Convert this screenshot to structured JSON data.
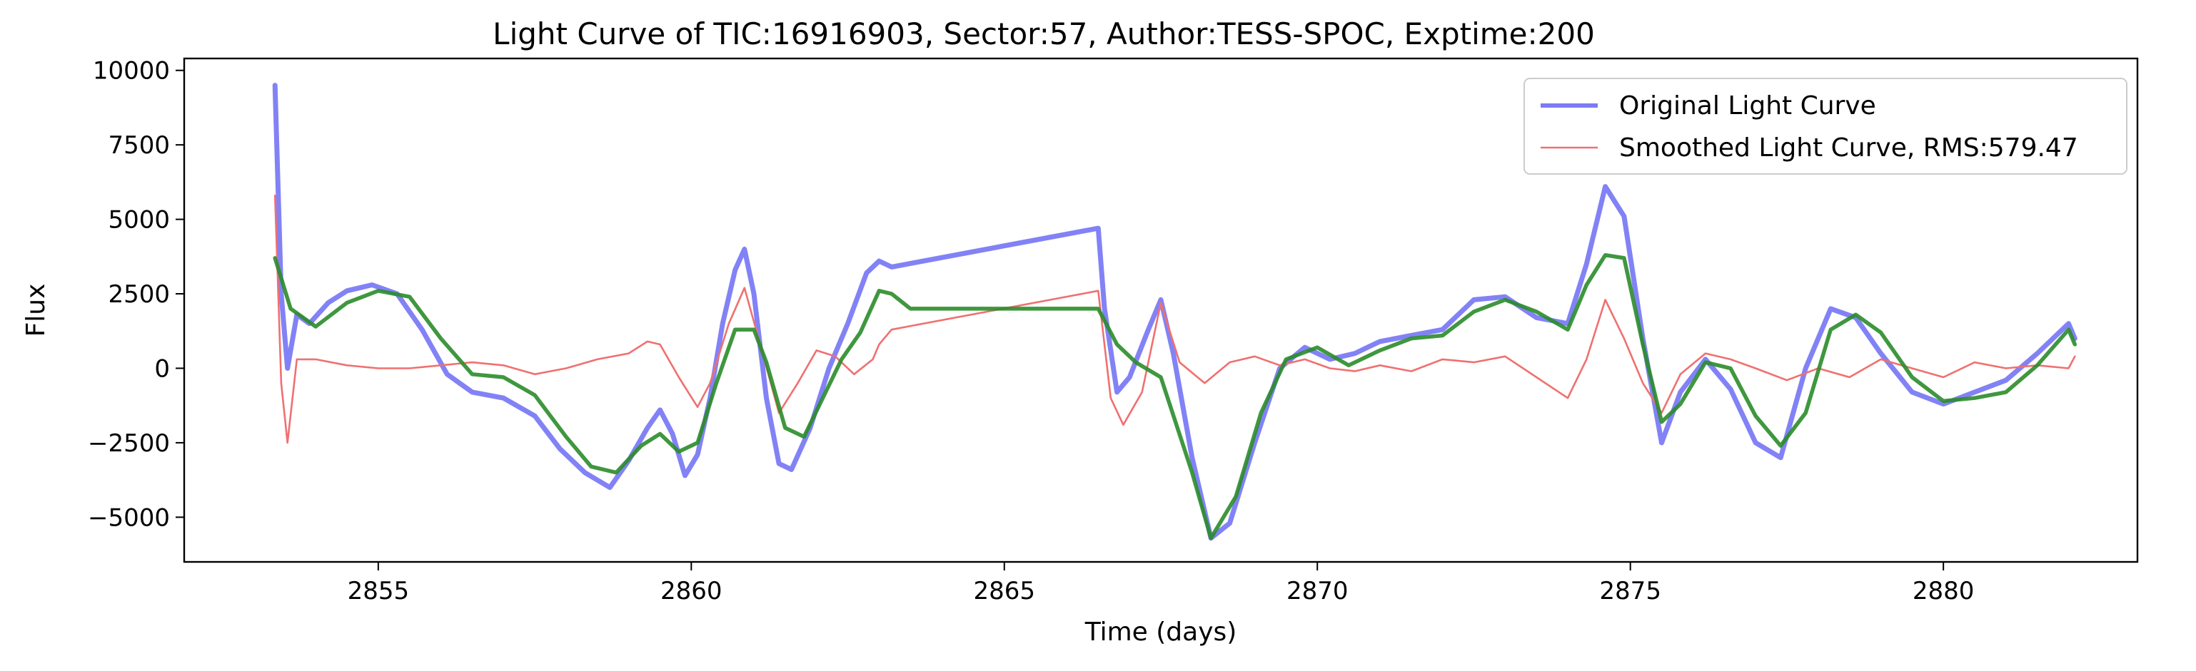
{
  "chart_data": {
    "type": "line",
    "title": "Light Curve of TIC:16916903, Sector:57, Author:TESS-SPOC, Exptime:200",
    "xlabel": "Time (days)",
    "ylabel": "Flux",
    "xlim": [
      2851.9,
      2883.1
    ],
    "ylim": [
      -6500,
      10400
    ],
    "xticks": [
      2855,
      2860,
      2865,
      2870,
      2875,
      2880
    ],
    "xtick_labels": [
      "2855",
      "2860",
      "2865",
      "2870",
      "2875",
      "2880"
    ],
    "yticks": [
      -5000,
      -2500,
      0,
      2500,
      5000,
      7500,
      10000
    ],
    "ytick_labels": [
      "−5000",
      "−2500",
      "0",
      "2500",
      "5000",
      "7500",
      "10000"
    ],
    "grid": false,
    "legend_position": "top-right",
    "series": [
      {
        "name": "Original Light Curve",
        "color": "#7b7bf6",
        "x": [
          2853.35,
          2853.45,
          2853.55,
          2853.7,
          2853.9,
          2854.2,
          2854.5,
          2854.9,
          2855.3,
          2855.7,
          2856.1,
          2856.5,
          2857.0,
          2857.5,
          2857.9,
          2858.3,
          2858.7,
          2859.0,
          2859.3,
          2859.5,
          2859.7,
          2859.9,
          2860.1,
          2860.3,
          2860.5,
          2860.7,
          2860.85,
          2861.0,
          2861.2,
          2861.4,
          2861.6,
          2861.9,
          2862.2,
          2862.5,
          2862.8,
          2863.0,
          2863.2,
          2866.5,
          2866.6,
          2866.8,
          2867.0,
          2867.3,
          2867.5,
          2867.7,
          2868.0,
          2868.3,
          2868.6,
          2869.0,
          2869.4,
          2869.8,
          2870.2,
          2870.6,
          2871.0,
          2871.5,
          2872.0,
          2872.5,
          2873.0,
          2873.5,
          2874.0,
          2874.3,
          2874.6,
          2874.9,
          2875.2,
          2875.5,
          2875.8,
          2876.2,
          2876.6,
          2877.0,
          2877.4,
          2877.8,
          2878.2,
          2878.6,
          2879.0,
          2879.5,
          2880.0,
          2880.5,
          2881.0,
          2881.5,
          2882.0,
          2882.1
        ],
        "y": [
          9500,
          2500,
          0,
          1800,
          1500,
          2200,
          2600,
          2800,
          2500,
          1300,
          -200,
          -800,
          -1000,
          -1600,
          -2700,
          -3500,
          -4000,
          -3100,
          -2000,
          -1400,
          -2200,
          -3600,
          -2900,
          -1000,
          1500,
          3300,
          4000,
          2500,
          -1000,
          -3200,
          -3400,
          -2000,
          0,
          1500,
          3200,
          3600,
          3400,
          4700,
          2000,
          -800,
          -300,
          1300,
          2300,
          500,
          -3000,
          -5700,
          -5200,
          -2500,
          0,
          700,
          300,
          500,
          900,
          1100,
          1300,
          2300,
          2400,
          1700,
          1500,
          3500,
          6100,
          5100,
          1000,
          -2500,
          -800,
          300,
          -700,
          -2500,
          -3000,
          0,
          2000,
          1700,
          500,
          -800,
          -1200,
          -800,
          -400,
          500,
          1500,
          1000
        ]
      },
      {
        "name": "Smoothed Light Curve, RMS:579.47",
        "color": "#f07070",
        "x": [
          2853.35,
          2853.45,
          2853.55,
          2853.7,
          2854.0,
          2854.5,
          2855.0,
          2855.5,
          2856.0,
          2856.5,
          2857.0,
          2857.5,
          2858.0,
          2858.5,
          2859.0,
          2859.3,
          2859.5,
          2859.8,
          2860.1,
          2860.3,
          2860.6,
          2860.85,
          2861.1,
          2861.4,
          2861.7,
          2862.0,
          2862.3,
          2862.6,
          2862.9,
          2863.0,
          2863.2,
          2866.5,
          2866.7,
          2866.9,
          2867.2,
          2867.5,
          2867.8,
          2868.2,
          2868.6,
          2869.0,
          2869.4,
          2869.8,
          2870.2,
          2870.6,
          2871.0,
          2871.5,
          2872.0,
          2872.5,
          2873.0,
          2873.5,
          2874.0,
          2874.3,
          2874.6,
          2874.9,
          2875.2,
          2875.5,
          2875.8,
          2876.2,
          2876.6,
          2877.0,
          2877.5,
          2878.0,
          2878.5,
          2879.0,
          2879.5,
          2880.0,
          2880.5,
          2881.0,
          2881.5,
          2882.0,
          2882.1
        ],
        "y": [
          5800,
          -500,
          -2500,
          300,
          300,
          100,
          0,
          0,
          100,
          200,
          100,
          -200,
          0,
          300,
          500,
          900,
          800,
          -300,
          -1300,
          -500,
          1500,
          2700,
          800,
          -1500,
          -500,
          600,
          400,
          -200,
          300,
          800,
          1300,
          2600,
          -1000,
          -1900,
          -800,
          2200,
          200,
          -500,
          200,
          400,
          100,
          300,
          0,
          -100,
          100,
          -100,
          300,
          200,
          400,
          -300,
          -1000,
          300,
          2300,
          1000,
          -500,
          -1500,
          -200,
          500,
          300,
          0,
          -400,
          0,
          -300,
          300,
          0,
          -300,
          200,
          0,
          100,
          0,
          400
        ]
      },
      {
        "name": "",
        "color": "#2a8c2a",
        "x": [
          2853.35,
          2853.6,
          2854.0,
          2854.5,
          2855.0,
          2855.5,
          2856.0,
          2856.5,
          2857.0,
          2857.5,
          2858.0,
          2858.4,
          2858.8,
          2859.2,
          2859.5,
          2859.8,
          2860.1,
          2860.4,
          2860.7,
          2861.0,
          2861.2,
          2861.5,
          2861.8,
          2862.1,
          2862.4,
          2862.7,
          2863.0,
          2863.2,
          2863.5,
          2866.5,
          2866.8,
          2867.1,
          2867.5,
          2868.0,
          2868.3,
          2868.7,
          2869.1,
          2869.5,
          2870.0,
          2870.5,
          2871.0,
          2871.5,
          2872.0,
          2872.5,
          2873.0,
          2873.5,
          2874.0,
          2874.3,
          2874.6,
          2874.9,
          2875.2,
          2875.5,
          2875.8,
          2876.2,
          2876.6,
          2877.0,
          2877.4,
          2877.8,
          2878.2,
          2878.6,
          2879.0,
          2879.5,
          2880.0,
          2880.5,
          2881.0,
          2881.5,
          2882.0,
          2882.1
        ],
        "y": [
          3700,
          2000,
          1400,
          2200,
          2600,
          2400,
          1000,
          -200,
          -300,
          -900,
          -2300,
          -3300,
          -3500,
          -2600,
          -2200,
          -2800,
          -2500,
          -500,
          1300,
          1300,
          200,
          -2000,
          -2300,
          -1000,
          300,
          1200,
          2600,
          2500,
          2000,
          2000,
          800,
          200,
          -300,
          -3500,
          -5700,
          -4300,
          -1500,
          300,
          700,
          100,
          600,
          1000,
          1100,
          1900,
          2300,
          1900,
          1300,
          2800,
          3800,
          3700,
          800,
          -1800,
          -1200,
          200,
          0,
          -1600,
          -2600,
          -1500,
          1300,
          1800,
          1200,
          -300,
          -1100,
          -1000,
          -800,
          100,
          1300,
          800
        ]
      }
    ]
  }
}
